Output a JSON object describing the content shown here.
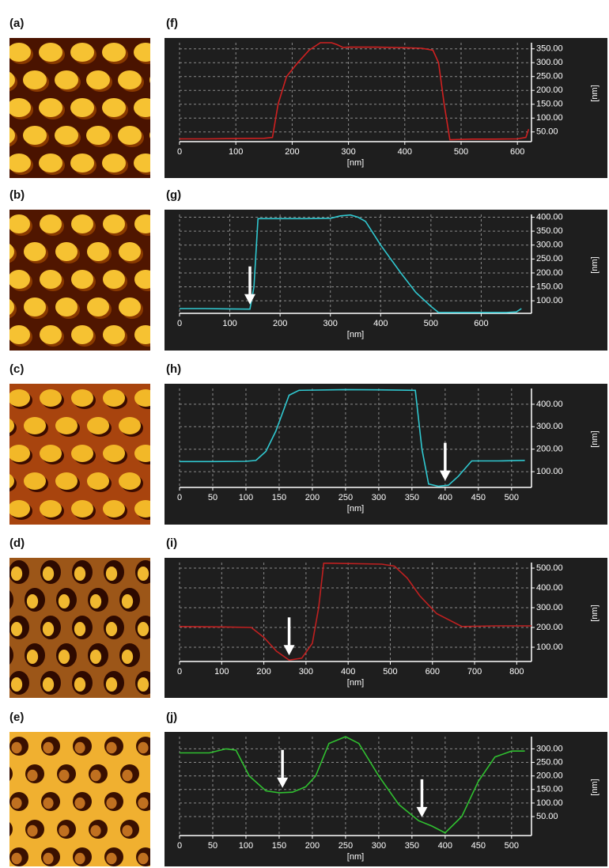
{
  "images": [
    {
      "label": "(a)"
    },
    {
      "label": "(b)"
    },
    {
      "label": "(c)"
    },
    {
      "label": "(d)"
    },
    {
      "label": "(e)"
    }
  ],
  "chart_data": [
    {
      "type": "line",
      "title": "(f)",
      "xlabel": "[nm]",
      "ylabel": "[nm]",
      "color": "#d02020",
      "grid": true,
      "x": [
        0,
        50,
        100,
        150,
        165,
        175,
        190,
        210,
        230,
        250,
        270,
        280,
        290,
        300,
        350,
        400,
        430,
        450,
        460,
        470,
        480,
        520,
        560,
        600,
        615,
        620
      ],
      "values": [
        25,
        25,
        26,
        27,
        30,
        150,
        250,
        300,
        345,
        372,
        372,
        365,
        355,
        356,
        356,
        354,
        352,
        345,
        300,
        150,
        22,
        24,
        24,
        25,
        30,
        60
      ],
      "xlim": [
        0,
        625
      ],
      "xticks": [
        0,
        100,
        200,
        300,
        400,
        500,
        600
      ],
      "ylim": [
        15,
        372
      ],
      "yticks": [
        {
          "value": 50,
          "label": "50.00"
        },
        {
          "value": 100,
          "label": "100.00"
        },
        {
          "value": 150,
          "label": "150.00"
        },
        {
          "value": 200,
          "label": "200.00"
        },
        {
          "value": 250,
          "label": "250.00"
        },
        {
          "value": 300,
          "label": "300.00"
        },
        {
          "value": 350,
          "label": "350.00"
        }
      ],
      "arrows_x": []
    },
    {
      "type": "line",
      "title": "(g)",
      "xlabel": "[nm]",
      "ylabel": "[nm]",
      "color": "#30c8d0",
      "grid": true,
      "x": [
        0,
        50,
        100,
        140,
        148,
        156,
        200,
        250,
        300,
        320,
        340,
        355,
        370,
        400,
        440,
        470,
        500,
        515,
        550,
        600,
        650,
        670,
        680
      ],
      "values": [
        72,
        72,
        71,
        70,
        150,
        395,
        395,
        395,
        396,
        405,
        408,
        400,
        385,
        300,
        200,
        130,
        80,
        58,
        58,
        58,
        58,
        60,
        72
      ],
      "xlim": [
        0,
        700
      ],
      "xticks": [
        0,
        100,
        200,
        300,
        400,
        500,
        600
      ],
      "ylim": [
        55,
        410
      ],
      "yticks": [
        {
          "value": 100,
          "label": "100.00"
        },
        {
          "value": 150,
          "label": "150.00"
        },
        {
          "value": 200,
          "label": "200.00"
        },
        {
          "value": 250,
          "label": "250.00"
        },
        {
          "value": 300,
          "label": "300.00"
        },
        {
          "value": 350,
          "label": "350.00"
        },
        {
          "value": 400,
          "label": "400.00"
        }
      ],
      "arrows_x": [
        140
      ]
    },
    {
      "type": "line",
      "title": "(h)",
      "xlabel": "[nm]",
      "ylabel": "[nm]",
      "color": "#30c8d0",
      "grid": true,
      "x": [
        0,
        50,
        100,
        115,
        130,
        145,
        165,
        180,
        250,
        300,
        355,
        365,
        375,
        390,
        405,
        420,
        440,
        480,
        520
      ],
      "values": [
        145,
        145,
        146,
        150,
        190,
        280,
        440,
        462,
        465,
        464,
        462,
        200,
        45,
        35,
        40,
        80,
        148,
        148,
        150
      ],
      "xlim": [
        0,
        530
      ],
      "xticks": [
        0,
        50,
        100,
        150,
        200,
        250,
        300,
        350,
        400,
        450,
        500
      ],
      "ylim": [
        30,
        470
      ],
      "yticks": [
        {
          "value": 100,
          "label": "100.00"
        },
        {
          "value": 200,
          "label": "200.00"
        },
        {
          "value": 300,
          "label": "300.00"
        },
        {
          "value": 400,
          "label": "400.00"
        }
      ],
      "arrows_x": [
        400
      ]
    },
    {
      "type": "line",
      "title": "(i)",
      "xlabel": "[nm]",
      "ylabel": "[nm]",
      "color": "#c02020",
      "grid": true,
      "x": [
        0,
        100,
        170,
        200,
        230,
        260,
        290,
        315,
        330,
        342,
        360,
        480,
        510,
        540,
        570,
        610,
        670,
        750,
        835
      ],
      "values": [
        205,
        203,
        200,
        150,
        80,
        35,
        45,
        120,
        300,
        525,
        525,
        520,
        510,
        450,
        360,
        270,
        205,
        208,
        208
      ],
      "xlim": [
        0,
        835
      ],
      "xticks": [
        0,
        100,
        200,
        300,
        400,
        500,
        600,
        700,
        800
      ],
      "ylim": [
        28,
        528
      ],
      "yticks": [
        {
          "value": 100,
          "label": "100.00"
        },
        {
          "value": 200,
          "label": "200.00"
        },
        {
          "value": 300,
          "label": "300.00"
        },
        {
          "value": 400,
          "label": "400.00"
        },
        {
          "value": 500,
          "label": "500.00"
        }
      ],
      "arrows_x": [
        260
      ]
    },
    {
      "type": "line",
      "title": "(j)",
      "xlabel": "[nm]",
      "ylabel": "[nm]",
      "color": "#30c030",
      "grid": true,
      "x": [
        0,
        45,
        70,
        85,
        105,
        130,
        150,
        170,
        190,
        205,
        225,
        250,
        270,
        300,
        330,
        360,
        380,
        400,
        425,
        450,
        475,
        500,
        520
      ],
      "values": [
        285,
        285,
        300,
        295,
        200,
        145,
        138,
        140,
        160,
        200,
        320,
        345,
        320,
        200,
        95,
        35,
        15,
        -10,
        50,
        180,
        270,
        292,
        292
      ],
      "xlim": [
        0,
        530
      ],
      "xticks": [
        0,
        50,
        100,
        150,
        200,
        250,
        300,
        350,
        400,
        450,
        500
      ],
      "ylim": [
        -20,
        345
      ],
      "yticks": [
        {
          "value": 50,
          "label": "50.00"
        },
        {
          "value": 100,
          "label": "100.00"
        },
        {
          "value": 150,
          "label": "150.00"
        },
        {
          "value": 200,
          "label": "200.00"
        },
        {
          "value": 250,
          "label": "250.00"
        },
        {
          "value": 300,
          "label": "300.00"
        }
      ],
      "arrows_x": [
        155,
        365
      ]
    }
  ]
}
